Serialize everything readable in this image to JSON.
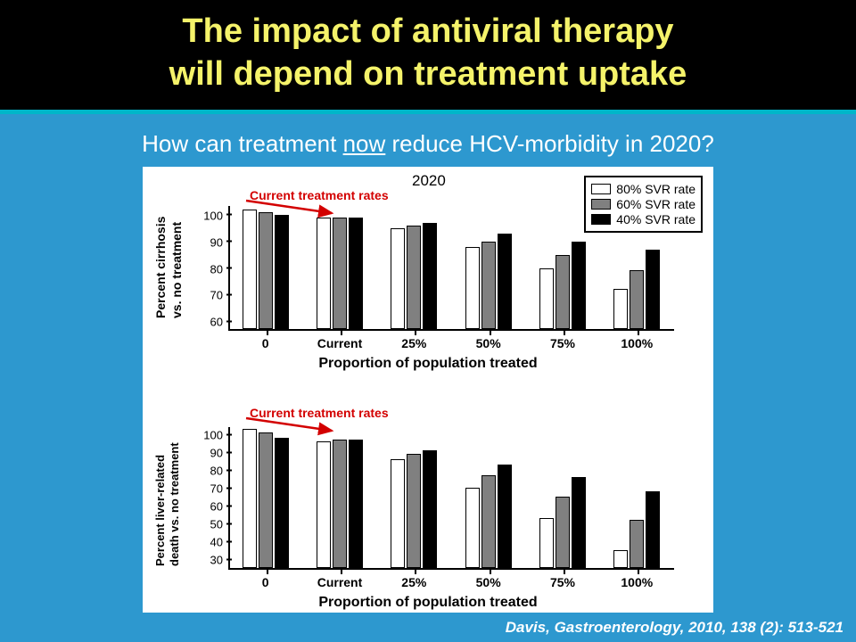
{
  "title": {
    "line1": "The impact of antiviral therapy",
    "line2": "will depend on treatment uptake",
    "text_color": "#f5f36a",
    "bg_color": "#000000",
    "underline_color": "#00b6c9",
    "fontsize": 38
  },
  "body": {
    "bg_color": "#2d98cf",
    "subtitle_pre": "How can treatment ",
    "subtitle_u": "now",
    "subtitle_post": " reduce HCV-morbidity in 2020?",
    "subtitle_color": "#ffffff",
    "subtitle_fontsize": 26
  },
  "chart_panel": {
    "bg_color": "#ffffff",
    "year_label": "2020",
    "legend": {
      "items": [
        {
          "label": "80% SVR rate",
          "fill": "#ffffff"
        },
        {
          "label": "60% SVR rate",
          "fill": "#808080"
        },
        {
          "label": "40% SVR rate",
          "fill": "#000000"
        }
      ],
      "border_color": "#000000"
    },
    "annotation_text": "Current treatment rates",
    "annotation_color": "#d30000",
    "x_categories": [
      "0",
      "Current",
      "25%",
      "50%",
      "75%",
      "100%"
    ],
    "x_title": "Proportion of population treated",
    "top": {
      "type": "bar",
      "ylabel_line1": "Percent cirrhosis",
      "ylabel_line2": "vs. no treatment",
      "ylim": [
        55,
        102
      ],
      "yticks": [
        60,
        70,
        80,
        90,
        100
      ],
      "series": {
        "white": [
          100,
          97,
          93,
          86,
          78,
          70
        ],
        "gray": [
          99,
          97,
          94,
          88,
          83,
          77
        ],
        "black": [
          98,
          97,
          95,
          91,
          88,
          85
        ]
      }
    },
    "bottom": {
      "type": "bar",
      "ylabel_line1": "Percent liver-related",
      "ylabel_line2": "death vs. no treatment",
      "ylim": [
        22,
        102
      ],
      "yticks": [
        30,
        40,
        50,
        60,
        70,
        80,
        90,
        100
      ],
      "series": {
        "white": [
          100,
          93,
          83,
          67,
          50,
          32
        ],
        "gray": [
          98,
          94,
          86,
          74,
          62,
          49
        ],
        "black": [
          95,
          94,
          88,
          80,
          73,
          65
        ]
      }
    },
    "bar_colors": {
      "white": "#ffffff",
      "gray": "#808080",
      "black": "#000000"
    },
    "axis_color": "#000000",
    "tick_fontsize": 13,
    "label_fontsize": 14
  },
  "citation": "Davis, Gastroenterology, 2010, 138 (2): 513-521"
}
